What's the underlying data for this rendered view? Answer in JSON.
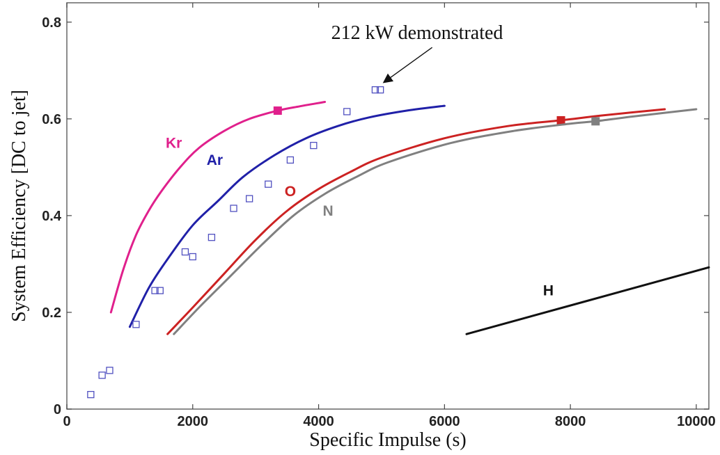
{
  "chart_data": {
    "type": "line",
    "xlabel": "Specific Impulse (s)",
    "ylabel": "System Efficiency [DC to jet]",
    "xlim": [
      0,
      10200
    ],
    "ylim": [
      0,
      0.84
    ],
    "x_ticks": [
      0,
      2000,
      4000,
      6000,
      8000,
      10000
    ],
    "y_ticks": [
      0,
      0.2,
      0.4,
      0.6,
      0.8
    ],
    "x_tick_labels": [
      "0",
      "2000",
      "4000",
      "6000",
      "8000",
      "10000"
    ],
    "y_tick_labels": [
      "0",
      "0.2",
      "0.4",
      "0.6",
      "0.8"
    ],
    "grid": false,
    "series": [
      {
        "name": "Kr",
        "color": "#e0208c",
        "x": [
          700,
          900,
          1100,
          1300,
          1500,
          1800,
          2100,
          2500,
          2900,
          3350,
          3700,
          4100
        ],
        "y": [
          0.2,
          0.29,
          0.36,
          0.41,
          0.45,
          0.5,
          0.54,
          0.575,
          0.6,
          0.617,
          0.626,
          0.635
        ],
        "label_at": [
          1700,
          0.54
        ],
        "marker": {
          "x": 3350,
          "y": 0.617
        }
      },
      {
        "name": "Ar",
        "color": "#2020a8",
        "x": [
          1000,
          1300,
          1600,
          2000,
          2400,
          2800,
          3300,
          3800,
          4300,
          4800,
          5400,
          6000
        ],
        "y": [
          0.17,
          0.25,
          0.31,
          0.38,
          0.43,
          0.48,
          0.525,
          0.56,
          0.585,
          0.603,
          0.617,
          0.627
        ],
        "label_at": [
          2350,
          0.505
        ]
      },
      {
        "name": "O",
        "color": "#cc2222",
        "x": [
          1600,
          2000,
          2500,
          3000,
          3500,
          4000,
          4500,
          5000,
          6000,
          7000,
          7850,
          8500,
          9500
        ],
        "y": [
          0.155,
          0.21,
          0.28,
          0.35,
          0.41,
          0.455,
          0.49,
          0.52,
          0.56,
          0.585,
          0.597,
          0.607,
          0.62
        ],
        "label_at": [
          3550,
          0.44
        ],
        "marker": {
          "x": 7850,
          "y": 0.597
        }
      },
      {
        "name": "N",
        "color": "#808080",
        "x": [
          1700,
          2100,
          2600,
          3100,
          3600,
          4100,
          4600,
          5100,
          6100,
          7100,
          8000,
          8400,
          9000,
          10000
        ],
        "y": [
          0.155,
          0.21,
          0.275,
          0.34,
          0.4,
          0.445,
          0.48,
          0.51,
          0.55,
          0.575,
          0.59,
          0.595,
          0.605,
          0.62
        ],
        "label_at": [
          4150,
          0.4
        ],
        "marker": {
          "x": 8400,
          "y": 0.595
        }
      },
      {
        "name": "H",
        "color": "#111111",
        "x": [
          6350,
          10200
        ],
        "y": [
          0.155,
          0.293
        ],
        "label_at": [
          7650,
          0.235
        ]
      },
      {
        "name": "",
        "color": "#5050c0",
        "style": "open-square",
        "x": [
          380,
          560,
          680,
          1100,
          1400,
          1480,
          1880,
          2000,
          2300,
          2650,
          2900,
          3200,
          3550,
          3920,
          4450,
          4900,
          4980
        ],
        "y": [
          0.03,
          0.07,
          0.08,
          0.175,
          0.245,
          0.245,
          0.325,
          0.315,
          0.355,
          0.415,
          0.435,
          0.465,
          0.515,
          0.545,
          0.615,
          0.66,
          0.66
        ]
      }
    ],
    "annotations": [
      {
        "text": "212 kW demonstrated",
        "text_at": [
          4200,
          0.765
        ],
        "arrow_to": [
          5000,
          0.672
        ]
      }
    ]
  }
}
